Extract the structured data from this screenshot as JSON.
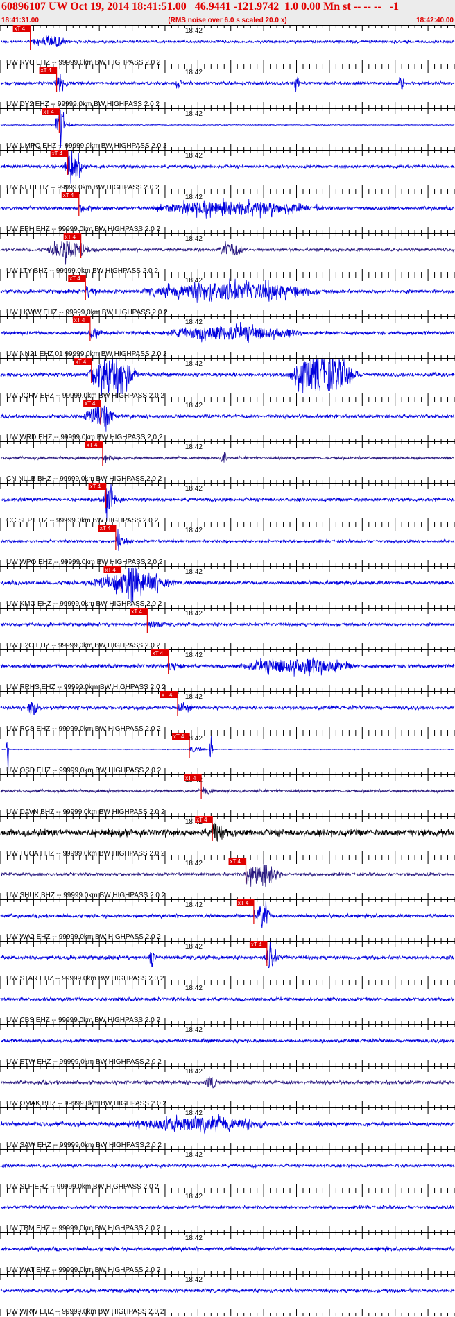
{
  "header": {
    "title": "60896107 UW Oct 19, 2014 18:41:51.00   46.9441 -121.9742  1.0 0.00 Mn st -- -- --   -1",
    "start_time": "18:41:31.00",
    "note": "(RMS noise over 6.0 s scaled 20.0 x)",
    "end_time": "18:42:40.00"
  },
  "chart_data": {
    "type": "line",
    "title": "60896107 UW Oct 19, 2014 18:41:51.00   46.9441 -121.9742  1.0 0.00 Mn st -- -- --   -1",
    "time_range": [
      "18:41:31.00",
      "18:42:40.00"
    ],
    "minute_mark_label": "18:42",
    "minute_mark_seconds": 29,
    "duration_seconds": 69,
    "pick_label": "xT 4",
    "pick_color": "#e00000",
    "grid": "vertical ticks every 5 s",
    "traces": [
      {
        "label": "UW RVC EHZ -- 99999.0km BW  HIGHPASS  2.0  2",
        "pick_s": 4.5,
        "color": "#0000dd",
        "amp": 0.3,
        "bursts": [
          {
            "t": 8,
            "w": 4,
            "a": 1.4
          }
        ]
      },
      {
        "label": "UW DY2 EHZ -- 99999.0km BW  HIGHPASS  2.0  2",
        "pick_s": 8.5,
        "color": "#0000dd",
        "amp": 0.35,
        "bursts": [
          {
            "t": 9,
            "w": 2,
            "a": 1.5
          },
          {
            "t": 27,
            "w": 1,
            "a": 1.6
          },
          {
            "t": 45,
            "w": 1,
            "a": 1.6
          },
          {
            "t": 61,
            "w": 1,
            "a": 1.5
          }
        ]
      },
      {
        "label": "UW UMPQ EHZ -- 99999.0km BW  HIGHPASS  2.0  2",
        "pick_s": 8.9,
        "color": "#0000dd",
        "amp": 0.1,
        "bursts": [
          {
            "t": 9,
            "w": 1.5,
            "a": 3.5
          }
        ]
      },
      {
        "label": "UW NEL EHZ -- 99999.0km BW  HIGHPASS  2.0  2",
        "pick_s": 10.2,
        "color": "#0000dd",
        "amp": 0.35,
        "bursts": [
          {
            "t": 11,
            "w": 3,
            "a": 2.4
          }
        ]
      },
      {
        "label": "UW EPH EHZ -- 99999.0km BW  HIGHPASS  2.0  2",
        "pick_s": 11.9,
        "color": "#0000dd",
        "amp": 0.35,
        "bursts": [
          {
            "t": 35,
            "w": 25,
            "a": 1.6
          },
          {
            "t": 48,
            "w": 0.3,
            "a": 4.0
          }
        ]
      },
      {
        "label": "UW LTY BHZ -- 99999.0km BW  HIGHPASS  2.0  2",
        "pick_s": 12.2,
        "color": "#2a1a80",
        "amp": 0.35,
        "bursts": [
          {
            "t": 10,
            "w": 6,
            "a": 2.2
          },
          {
            "t": 35,
            "w": 4,
            "a": 1.5
          }
        ]
      },
      {
        "label": "UW LKWW EHZ -- 99999.0km BW  HIGHPASS  2.0  2",
        "pick_s": 12.9,
        "color": "#0000dd",
        "amp": 0.4,
        "bursts": [
          {
            "t": 35,
            "w": 28,
            "a": 1.9
          }
        ]
      },
      {
        "label": "UW NN21 EHZ 01 99999.0km BW  HIGHPASS  2.0  2",
        "pick_s": 13.6,
        "color": "#0000dd",
        "amp": 0.4,
        "bursts": [
          {
            "t": 35,
            "w": 22,
            "a": 1.5
          }
        ]
      },
      {
        "label": "UW JORV EHZ -- 99999.0km BW  HIGHPASS  2.0  2",
        "pick_s": 13.8,
        "color": "#0000dd",
        "amp": 0.45,
        "bursts": [
          {
            "t": 17,
            "w": 8,
            "a": 4.0
          },
          {
            "t": 49,
            "w": 11,
            "a": 4.5
          }
        ]
      },
      {
        "label": "UW WRD EHZ -- 99999.0km BW  HIGHPASS  2.0  2",
        "pick_s": 15.2,
        "color": "#0000dd",
        "amp": 0.4,
        "bursts": [
          {
            "t": 15,
            "w": 5,
            "a": 2.3
          }
        ]
      },
      {
        "label": "CN NLLB BHZ -- 99999.0km BW  HIGHPASS  2.0  2",
        "pick_s": 15.5,
        "color": "#2a1a80",
        "amp": 0.3,
        "bursts": [
          {
            "t": 34,
            "w": 1,
            "a": 1.5
          }
        ]
      },
      {
        "label": "CC SEP EHZ -- 99999.0km BW  HIGHPASS  2.0  2",
        "pick_s": 16.0,
        "color": "#0000dd",
        "amp": 0.4,
        "bursts": [
          {
            "t": 16.5,
            "w": 2,
            "a": 3.0
          }
        ]
      },
      {
        "label": "UW WPO EHZ -- 99999.0km BW  HIGHPASS  2.0  2",
        "pick_s": 17.5,
        "color": "#0000dd",
        "amp": 0.3,
        "bursts": [
          {
            "t": 18,
            "w": 1,
            "a": 1.4
          }
        ]
      },
      {
        "label": "UW KMO EHZ -- 99999.0km BW  HIGHPASS  2.0  2",
        "pick_s": 18.3,
        "color": "#0000dd",
        "amp": 0.4,
        "bursts": [
          {
            "t": 20,
            "w": 14,
            "a": 2.0
          },
          {
            "t": 20,
            "w": 2,
            "a": 3.0
          }
        ]
      },
      {
        "label": "UW H2O EHZ -- 99999.0km BW  HIGHPASS  2.0  2",
        "pick_s": 22.3,
        "color": "#0000dd",
        "amp": 0.35,
        "bursts": []
      },
      {
        "label": "UW RRHS EHZ -- 99999.0km BW  HIGHPASS  2.0  2",
        "pick_s": 25.5,
        "color": "#0000dd",
        "amp": 0.4,
        "bursts": [
          {
            "t": 45,
            "w": 18,
            "a": 1.6
          }
        ]
      },
      {
        "label": "UW RCS EHZ -- 99999.0km BW  HIGHPASS  2.0  2",
        "pick_s": 26.9,
        "color": "#0000dd",
        "amp": 0.4,
        "bursts": [
          {
            "t": 5,
            "w": 2,
            "a": 1.6
          }
        ]
      },
      {
        "label": "UW OSD EHZ -- 99999.0km BW  HIGHPASS  2.0  2",
        "pick_s": 28.7,
        "color": "#0000dd",
        "amp": 0.08,
        "bursts": [
          {
            "t": 1,
            "w": 0.5,
            "a": 5.0
          },
          {
            "t": 32,
            "w": 0.6,
            "a": 4.0
          }
        ]
      },
      {
        "label": "UW DAVN BHZ -- 99999.0km BW  HIGHPASS  2.0  2",
        "pick_s": 30.5,
        "color": "#2a1a80",
        "amp": 0.3,
        "bursts": []
      },
      {
        "label": "UW TUCA HHZ -- 99999.0km BW  HIGHPASS  2.0  2",
        "pick_s": 32.2,
        "color": "#000000",
        "amp": 0.8,
        "bursts": [
          {
            "t": 33,
            "w": 2,
            "a": 1.5
          }
        ]
      },
      {
        "label": "UW SHUK BHZ -- 99999.0km BW  HIGHPASS  2.0  2",
        "pick_s": 37.3,
        "color": "#2a1a80",
        "amp": 0.35,
        "bursts": [
          {
            "t": 40,
            "w": 6,
            "a": 2.5
          }
        ]
      },
      {
        "label": "UW WA2 EHZ -- 99999.0km BW  HIGHPASS  2.0  2",
        "pick_s": 38.5,
        "color": "#0000dd",
        "amp": 0.4,
        "bursts": [
          {
            "t": 40,
            "w": 2,
            "a": 3.0
          }
        ]
      },
      {
        "label": "UW STAR EHZ -- 99999.0km BW  HIGHPASS  2.0  2",
        "pick_s": 40.5,
        "color": "#0000dd",
        "amp": 0.4,
        "bursts": [
          {
            "t": 23,
            "w": 1,
            "a": 2.5
          },
          {
            "t": 41,
            "w": 2,
            "a": 2.0
          }
        ]
      },
      {
        "label": "UW CBS EHZ -- 99999.0km BW  HIGHPASS  2.0  2",
        "pick_s": null,
        "color": "#0000dd",
        "amp": 0.4,
        "bursts": []
      },
      {
        "label": "UW ETW EHZ -- 99999.0km BW  HIGHPASS  2.0  2",
        "pick_s": null,
        "color": "#0000dd",
        "amp": 0.35,
        "bursts": []
      },
      {
        "label": "UW OMAK BHZ -- 99999.0km BW  HIGHPASS  2.0  2",
        "pick_s": null,
        "color": "#2a1a80",
        "amp": 0.4,
        "bursts": [
          {
            "t": 32,
            "w": 2,
            "a": 1.5
          }
        ]
      },
      {
        "label": "UW SAW EHZ -- 99999.0km BW  HIGHPASS  2.0  2",
        "pick_s": null,
        "color": "#0000dd",
        "amp": 0.5,
        "bursts": [
          {
            "t": 30,
            "w": 22,
            "a": 1.3
          }
        ]
      },
      {
        "label": "UW SLF EHZ -- 99999.0km BW  HIGHPASS  2.0  2",
        "pick_s": null,
        "color": "#0000dd",
        "amp": 0.35,
        "bursts": []
      },
      {
        "label": "UW TBM EHZ -- 99999.0km BW  HIGHPASS  2.0  2",
        "pick_s": null,
        "color": "#0000dd",
        "amp": 0.35,
        "bursts": []
      },
      {
        "label": "UW WAT EHZ -- 99999.0km BW  HIGHPASS  2.0  2",
        "pick_s": null,
        "color": "#0000dd",
        "amp": 0.45,
        "bursts": []
      },
      {
        "label": "UW WRW EHZ -- 99999.0km BW  HIGHPASS  2.0  2",
        "pick_s": null,
        "color": "#0000dd",
        "amp": 0.4,
        "bursts": []
      }
    ]
  }
}
